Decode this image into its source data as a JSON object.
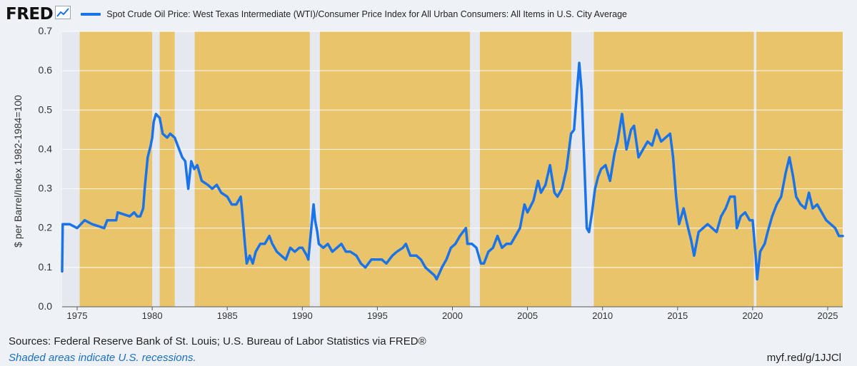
{
  "header": {
    "logo_text": "FRED",
    "logo_icon": "trend-line-icon",
    "series_label": "Spot Crude Oil Price: West Texas Intermediate (WTI)/Consumer Price Index for All Urban Consumers: All Items in U.S. City Average"
  },
  "footer": {
    "sources": "Sources: Federal Reserve Bank of St. Louis; U.S. Bureau of Labor Statistics via FRED®",
    "recession_note": "Shaded areas indicate U.S. recessions.",
    "short_url": "myf.red/g/1JJCl"
  },
  "colors": {
    "line": "#1a73e8",
    "plot_background": "#e9c46a",
    "recession_shade": "#e5e8ee",
    "page_background": "#eef2f7"
  },
  "chart_data": {
    "type": "line",
    "title": "",
    "xlabel": "",
    "ylabel": "$ per Barrel/Index 1982-1984=100",
    "xlim": [
      1974.0,
      2026.0
    ],
    "ylim": [
      0.0,
      0.7
    ],
    "x_ticks": [
      "1975",
      "1980",
      "1985",
      "1990",
      "1995",
      "2000",
      "2005",
      "2010",
      "2015",
      "2020",
      "2025"
    ],
    "y_ticks": [
      "0.0",
      "0.1",
      "0.2",
      "0.3",
      "0.4",
      "0.5",
      "0.6",
      "0.7"
    ],
    "grid": "horizontal",
    "legend": "top",
    "recessions": [
      [
        1974.0,
        1975.17
      ],
      [
        1980.0,
        1980.5
      ],
      [
        1981.5,
        1982.83
      ],
      [
        1990.5,
        1991.17
      ],
      [
        2001.17,
        2001.83
      ],
      [
        2007.92,
        2009.42
      ],
      [
        2020.08,
        2020.25
      ]
    ],
    "series": [
      {
        "name": "Spot Crude Oil Price: West Texas Intermediate (WTI)/Consumer Price Index for All Urban Consumers: All Items in U.S. City Average",
        "points": [
          [
            1974.0,
            0.09
          ],
          [
            1974.04,
            0.21
          ],
          [
            1974.5,
            0.21
          ],
          [
            1975.0,
            0.2
          ],
          [
            1975.5,
            0.22
          ],
          [
            1976.0,
            0.21
          ],
          [
            1976.8,
            0.2
          ],
          [
            1977.0,
            0.22
          ],
          [
            1977.6,
            0.22
          ],
          [
            1977.7,
            0.24
          ],
          [
            1978.5,
            0.23
          ],
          [
            1978.8,
            0.24
          ],
          [
            1979.0,
            0.23
          ],
          [
            1979.2,
            0.23
          ],
          [
            1979.4,
            0.25
          ],
          [
            1979.5,
            0.3
          ],
          [
            1979.7,
            0.38
          ],
          [
            1979.9,
            0.41
          ],
          [
            1980.0,
            0.43
          ],
          [
            1980.1,
            0.47
          ],
          [
            1980.25,
            0.49
          ],
          [
            1980.5,
            0.48
          ],
          [
            1980.7,
            0.44
          ],
          [
            1981.0,
            0.43
          ],
          [
            1981.2,
            0.44
          ],
          [
            1981.5,
            0.43
          ],
          [
            1981.8,
            0.4
          ],
          [
            1982.0,
            0.38
          ],
          [
            1982.2,
            0.37
          ],
          [
            1982.4,
            0.3
          ],
          [
            1982.6,
            0.37
          ],
          [
            1982.8,
            0.35
          ],
          [
            1983.0,
            0.36
          ],
          [
            1983.3,
            0.32
          ],
          [
            1983.7,
            0.31
          ],
          [
            1984.0,
            0.3
          ],
          [
            1984.3,
            0.31
          ],
          [
            1984.6,
            0.29
          ],
          [
            1985.0,
            0.28
          ],
          [
            1985.3,
            0.26
          ],
          [
            1985.6,
            0.26
          ],
          [
            1985.9,
            0.28
          ],
          [
            1986.0,
            0.24
          ],
          [
            1986.2,
            0.15
          ],
          [
            1986.3,
            0.11
          ],
          [
            1986.5,
            0.13
          ],
          [
            1986.7,
            0.11
          ],
          [
            1986.9,
            0.14
          ],
          [
            1987.2,
            0.16
          ],
          [
            1987.5,
            0.16
          ],
          [
            1987.8,
            0.18
          ],
          [
            1988.0,
            0.16
          ],
          [
            1988.3,
            0.14
          ],
          [
            1988.6,
            0.13
          ],
          [
            1988.9,
            0.12
          ],
          [
            1989.2,
            0.15
          ],
          [
            1989.5,
            0.14
          ],
          [
            1989.8,
            0.15
          ],
          [
            1990.0,
            0.15
          ],
          [
            1990.3,
            0.13
          ],
          [
            1990.4,
            0.12
          ],
          [
            1990.6,
            0.2
          ],
          [
            1990.75,
            0.26
          ],
          [
            1990.85,
            0.22
          ],
          [
            1991.0,
            0.19
          ],
          [
            1991.1,
            0.16
          ],
          [
            1991.4,
            0.15
          ],
          [
            1991.7,
            0.16
          ],
          [
            1992.0,
            0.14
          ],
          [
            1992.3,
            0.15
          ],
          [
            1992.6,
            0.16
          ],
          [
            1992.9,
            0.14
          ],
          [
            1993.2,
            0.14
          ],
          [
            1993.6,
            0.13
          ],
          [
            1993.9,
            0.11
          ],
          [
            1994.2,
            0.1
          ],
          [
            1994.6,
            0.12
          ],
          [
            1994.9,
            0.12
          ],
          [
            1995.3,
            0.12
          ],
          [
            1995.6,
            0.11
          ],
          [
            1996.0,
            0.13
          ],
          [
            1996.3,
            0.14
          ],
          [
            1996.7,
            0.15
          ],
          [
            1996.9,
            0.16
          ],
          [
            1997.2,
            0.13
          ],
          [
            1997.6,
            0.13
          ],
          [
            1997.9,
            0.12
          ],
          [
            1998.2,
            0.1
          ],
          [
            1998.5,
            0.09
          ],
          [
            1998.8,
            0.08
          ],
          [
            1998.95,
            0.07
          ],
          [
            1999.3,
            0.1
          ],
          [
            1999.6,
            0.12
          ],
          [
            1999.9,
            0.15
          ],
          [
            2000.2,
            0.16
          ],
          [
            2000.5,
            0.18
          ],
          [
            2000.7,
            0.19
          ],
          [
            2000.9,
            0.2
          ],
          [
            2001.0,
            0.16
          ],
          [
            2001.3,
            0.16
          ],
          [
            2001.6,
            0.15
          ],
          [
            2001.9,
            0.11
          ],
          [
            2002.1,
            0.11
          ],
          [
            2002.4,
            0.14
          ],
          [
            2002.7,
            0.15
          ],
          [
            2003.0,
            0.18
          ],
          [
            2003.3,
            0.15
          ],
          [
            2003.6,
            0.16
          ],
          [
            2003.9,
            0.16
          ],
          [
            2004.2,
            0.18
          ],
          [
            2004.5,
            0.2
          ],
          [
            2004.8,
            0.26
          ],
          [
            2005.0,
            0.24
          ],
          [
            2005.4,
            0.27
          ],
          [
            2005.7,
            0.32
          ],
          [
            2005.9,
            0.29
          ],
          [
            2006.2,
            0.31
          ],
          [
            2006.5,
            0.36
          ],
          [
            2006.8,
            0.29
          ],
          [
            2007.0,
            0.28
          ],
          [
            2007.3,
            0.3
          ],
          [
            2007.6,
            0.35
          ],
          [
            2007.9,
            0.44
          ],
          [
            2008.1,
            0.45
          ],
          [
            2008.3,
            0.55
          ],
          [
            2008.45,
            0.62
          ],
          [
            2008.6,
            0.55
          ],
          [
            2008.8,
            0.35
          ],
          [
            2008.95,
            0.2
          ],
          [
            2009.1,
            0.19
          ],
          [
            2009.3,
            0.24
          ],
          [
            2009.5,
            0.3
          ],
          [
            2009.7,
            0.33
          ],
          [
            2009.9,
            0.35
          ],
          [
            2010.2,
            0.36
          ],
          [
            2010.5,
            0.32
          ],
          [
            2010.8,
            0.39
          ],
          [
            2011.0,
            0.42
          ],
          [
            2011.3,
            0.49
          ],
          [
            2011.6,
            0.4
          ],
          [
            2011.9,
            0.45
          ],
          [
            2012.1,
            0.46
          ],
          [
            2012.4,
            0.38
          ],
          [
            2012.7,
            0.4
          ],
          [
            2013.0,
            0.42
          ],
          [
            2013.3,
            0.41
          ],
          [
            2013.6,
            0.45
          ],
          [
            2013.9,
            0.42
          ],
          [
            2014.2,
            0.43
          ],
          [
            2014.5,
            0.44
          ],
          [
            2014.7,
            0.38
          ],
          [
            2014.9,
            0.28
          ],
          [
            2015.1,
            0.21
          ],
          [
            2015.4,
            0.25
          ],
          [
            2015.7,
            0.2
          ],
          [
            2015.9,
            0.17
          ],
          [
            2016.1,
            0.13
          ],
          [
            2016.4,
            0.19
          ],
          [
            2016.7,
            0.2
          ],
          [
            2017.0,
            0.21
          ],
          [
            2017.3,
            0.2
          ],
          [
            2017.6,
            0.19
          ],
          [
            2017.9,
            0.23
          ],
          [
            2018.2,
            0.25
          ],
          [
            2018.5,
            0.28
          ],
          [
            2018.8,
            0.28
          ],
          [
            2018.95,
            0.2
          ],
          [
            2019.2,
            0.23
          ],
          [
            2019.5,
            0.24
          ],
          [
            2019.8,
            0.22
          ],
          [
            2020.0,
            0.22
          ],
          [
            2020.2,
            0.13
          ],
          [
            2020.3,
            0.07
          ],
          [
            2020.5,
            0.14
          ],
          [
            2020.8,
            0.16
          ],
          [
            2021.0,
            0.19
          ],
          [
            2021.3,
            0.23
          ],
          [
            2021.6,
            0.26
          ],
          [
            2021.9,
            0.28
          ],
          [
            2022.2,
            0.34
          ],
          [
            2022.45,
            0.38
          ],
          [
            2022.7,
            0.33
          ],
          [
            2022.9,
            0.28
          ],
          [
            2023.2,
            0.26
          ],
          [
            2023.5,
            0.25
          ],
          [
            2023.75,
            0.29
          ],
          [
            2024.0,
            0.25
          ],
          [
            2024.3,
            0.26
          ],
          [
            2024.6,
            0.24
          ],
          [
            2024.9,
            0.22
          ],
          [
            2025.2,
            0.21
          ],
          [
            2025.5,
            0.2
          ],
          [
            2025.75,
            0.18
          ],
          [
            2026.0,
            0.18
          ]
        ]
      }
    ]
  }
}
